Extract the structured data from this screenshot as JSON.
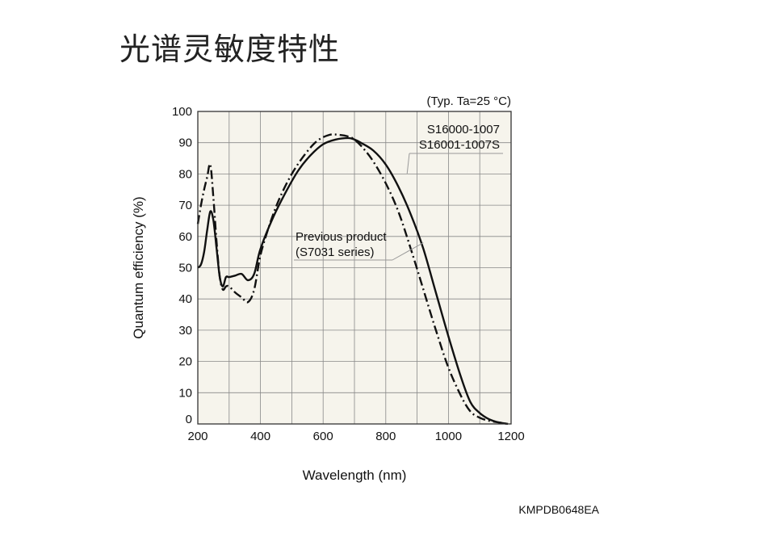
{
  "page": {
    "title": "光谱灵敏度特性",
    "document_code": "KMPDB0648EA"
  },
  "chart_data": {
    "type": "line",
    "title": "",
    "xlabel": "Wavelength (nm)",
    "ylabel": "Quantum efficiency (%)",
    "xlim": [
      200,
      1200
    ],
    "ylim": [
      0,
      100
    ],
    "xticks": [
      200,
      400,
      600,
      800,
      1000,
      1200
    ],
    "yticks": [
      0,
      10,
      20,
      30,
      40,
      50,
      60,
      70,
      80,
      90,
      100
    ],
    "x_grid_step": 100,
    "grid": true,
    "condition_note": "(Typ. Ta=25 °C)",
    "colors": {
      "plot_background": "#f6f4ec",
      "grid": "#888888",
      "line": "#111111"
    },
    "annotations": [
      {
        "lines": [
          "S16000-1007",
          "S16001-1007S"
        ],
        "points_to": "dash-dot",
        "anchor_x": 868,
        "anchor_y": 80
      },
      {
        "lines": [
          "Previous product",
          "(S7031 series)"
        ],
        "points_to": "solid",
        "anchor_x": 920,
        "anchor_y": 58
      }
    ],
    "series": [
      {
        "style": "dash-dot",
        "x": [
          200,
          210,
          220,
          230,
          240,
          250,
          260,
          270,
          280,
          290,
          300,
          320,
          340,
          360,
          380,
          400,
          430,
          460,
          500,
          540,
          580,
          620,
          650,
          680,
          700,
          730,
          760,
          800,
          840,
          880,
          920,
          960,
          1000,
          1040,
          1070,
          1100,
          1130,
          1160,
          1190
        ],
        "y": [
          64,
          70,
          75,
          79,
          83,
          72,
          58,
          47,
          43,
          44,
          44,
          42,
          40.5,
          39,
          43,
          54,
          64,
          72,
          80,
          86,
          90.5,
          92.5,
          92.5,
          92,
          91,
          88,
          84,
          77,
          68,
          56,
          43,
          30,
          18,
          9,
          4,
          2,
          1,
          0.5,
          0
        ]
      },
      {
        "style": "solid",
        "x": [
          200,
          210,
          220,
          230,
          240,
          250,
          260,
          270,
          280,
          290,
          300,
          320,
          340,
          360,
          380,
          400,
          440,
          480,
          520,
          560,
          600,
          640,
          680,
          700,
          720,
          760,
          800,
          840,
          880,
          920,
          960,
          1000,
          1040,
          1070,
          1100,
          1130,
          1160,
          1190
        ],
        "y": [
          50,
          51,
          55,
          62,
          68,
          65,
          56,
          47,
          44,
          47,
          47,
          47.5,
          48,
          46,
          48,
          56,
          66,
          74,
          81,
          86,
          89.5,
          91,
          91.5,
          91,
          90,
          87.5,
          83,
          76,
          67,
          56,
          42,
          28,
          15,
          7,
          3.5,
          1.5,
          0.5,
          0
        ]
      }
    ]
  }
}
